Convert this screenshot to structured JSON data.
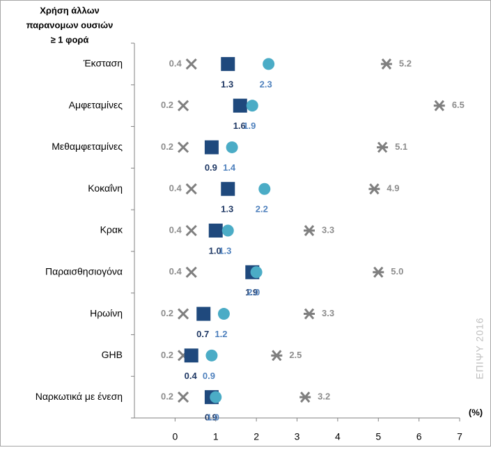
{
  "chart_data": {
    "type": "dot",
    "title_lines": [
      "Χρήση  άλλων",
      "παρανομων ουσιών",
      "≥ 1 φορά"
    ],
    "categories": [
      "Έκσταση",
      "Αμφεταμίνες",
      "Μεθαμφεταμίνες",
      "Κοκαΐνη",
      "Κρακ",
      "Παραισθησιογόνα",
      "Ηρωίνη",
      "GHB",
      "Ναρκωτικά με ένεση"
    ],
    "series": [
      {
        "marker": "x",
        "color": "#7f7f7f",
        "label_color": "#8c8c8c",
        "values": [
          0.4,
          0.2,
          0.2,
          0.4,
          0.4,
          0.4,
          0.2,
          0.2,
          0.2
        ],
        "value_labels": [
          "0.4",
          "0.2",
          "0.2",
          "0.4",
          "0.4",
          "0.4",
          "0.2",
          "0.2",
          "0.2"
        ]
      },
      {
        "marker": "square",
        "color": "#1f497d",
        "label_color": "#1f3864",
        "values": [
          1.3,
          1.6,
          0.9,
          1.3,
          1.0,
          1.9,
          0.7,
          0.4,
          0.9
        ],
        "value_labels": [
          "1.3",
          "1.6",
          "0.9",
          "1.3",
          "1.0",
          "1.9",
          "0.7",
          "0.4",
          "0.9"
        ]
      },
      {
        "marker": "circle",
        "color": "#4bacc6",
        "label_color": "#4f81bd",
        "values": [
          2.3,
          1.9,
          1.4,
          2.2,
          1.3,
          2.0,
          1.2,
          0.9,
          1.0
        ],
        "value_labels": [
          "2.3",
          "1.9",
          "1.4",
          "2.2",
          "1.3",
          "2.0",
          "1.2",
          "0.9",
          "1.0"
        ]
      },
      {
        "marker": "star",
        "color": "#7f7f7f",
        "label_color": "#8c8c8c",
        "values": [
          5.2,
          6.5,
          5.1,
          4.9,
          3.3,
          5.0,
          3.3,
          2.5,
          3.2
        ],
        "value_labels": [
          "5.2",
          "6.5",
          "5.1",
          "4.9",
          "3.3",
          "5.0",
          "3.3",
          "2.5",
          "3.2"
        ]
      }
    ],
    "xlim": [
      -1,
      7
    ],
    "xticks": [
      0,
      1,
      2,
      3,
      4,
      5,
      6,
      7
    ],
    "x_unit": "(%)",
    "watermark": "ΕΠΙΨΥ 2016"
  }
}
